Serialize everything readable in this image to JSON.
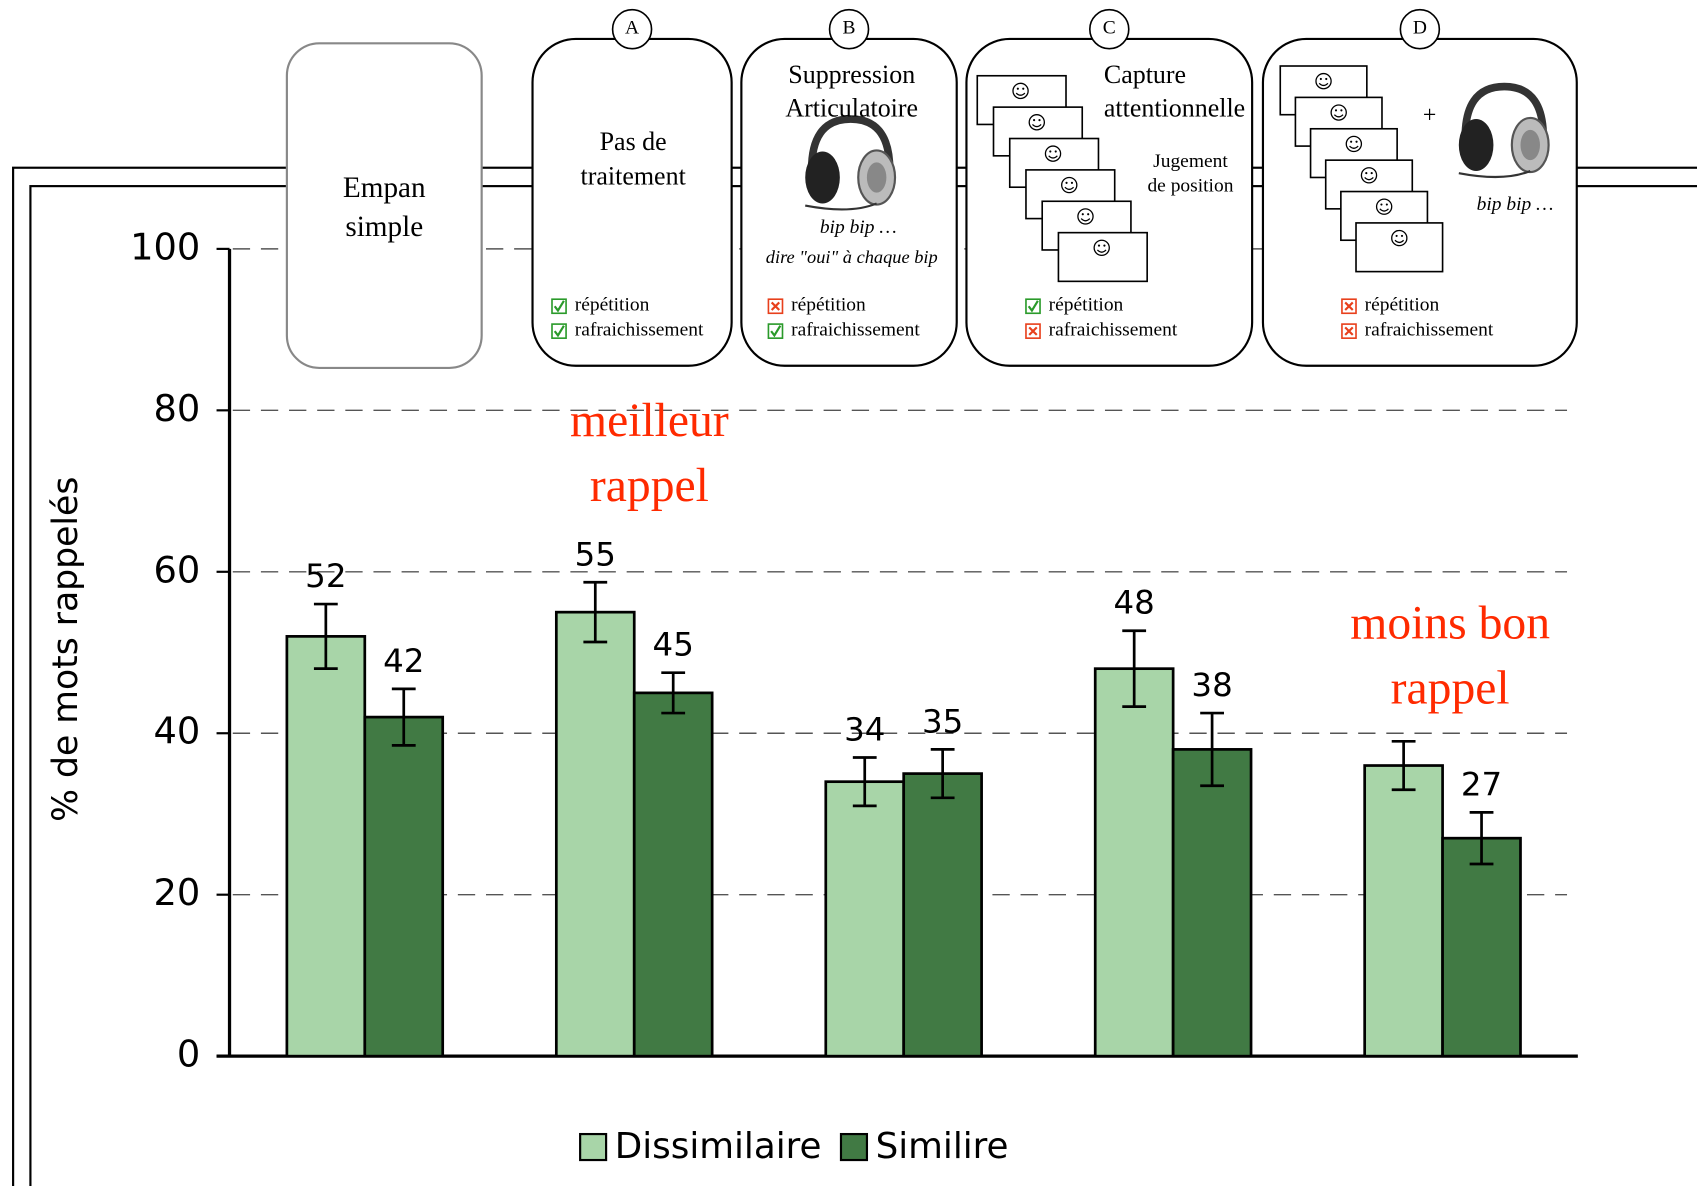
{
  "chart_data": {
    "type": "bar",
    "ylabel": "% de mots rappelés",
    "categories": [
      null,
      null,
      null,
      null,
      null
    ],
    "ylim": [
      0,
      100
    ],
    "yticks": [
      0,
      20,
      40,
      60,
      80,
      100
    ],
    "grid": true,
    "legend": "bottom",
    "series": [
      {
        "name": "Dissimilaire",
        "color": "#a8d5a8",
        "values": [
          52,
          55,
          34,
          48,
          36
        ],
        "value_labels": [
          "52",
          "55",
          "34",
          "48",
          null
        ],
        "errors": [
          4,
          3.7,
          3,
          4.7,
          3
        ]
      },
      {
        "name": "Similire",
        "color": "#417a44",
        "values": [
          42,
          45,
          35,
          38,
          27
        ],
        "value_labels": [
          "42",
          "45",
          "35",
          "38",
          "27"
        ],
        "errors": [
          3.5,
          2.5,
          3,
          4.5,
          3.2
        ]
      }
    ],
    "annotations": [
      {
        "lines": [
          "meilleur",
          "rappel"
        ],
        "color": "#ff2a00"
      },
      {
        "lines": [
          "moins bon",
          "rappel"
        ],
        "color": "#ff2a00"
      }
    ]
  },
  "panels": [
    {
      "title": [
        "Empan",
        "simple"
      ]
    },
    {
      "letter": "A",
      "title": [
        "Pas de",
        "traitement"
      ],
      "checks": [
        {
          "text": "répétition",
          "ok": true
        },
        {
          "text": "rafraichissement",
          "ok": true
        }
      ]
    },
    {
      "letter": "B",
      "title": [
        "Suppression",
        "Articulatoire"
      ],
      "caption": "bip bip …",
      "instruction": "dire \"oui\" à chaque bip",
      "checks": [
        {
          "text": "répétition",
          "ok": false
        },
        {
          "text": "rafraichissement",
          "ok": true
        }
      ]
    },
    {
      "letter": "C",
      "title": [
        "Capture",
        "attentionnelle"
      ],
      "note": [
        "Jugement",
        "de position"
      ],
      "checks": [
        {
          "text": "répétition",
          "ok": true
        },
        {
          "text": "rafraichissement",
          "ok": false
        }
      ]
    },
    {
      "letter": "D",
      "plus": "+",
      "caption": "bip bip …",
      "checks": [
        {
          "text": "répétition",
          "ok": false
        },
        {
          "text": "rafraichissement",
          "ok": false
        }
      ]
    }
  ]
}
